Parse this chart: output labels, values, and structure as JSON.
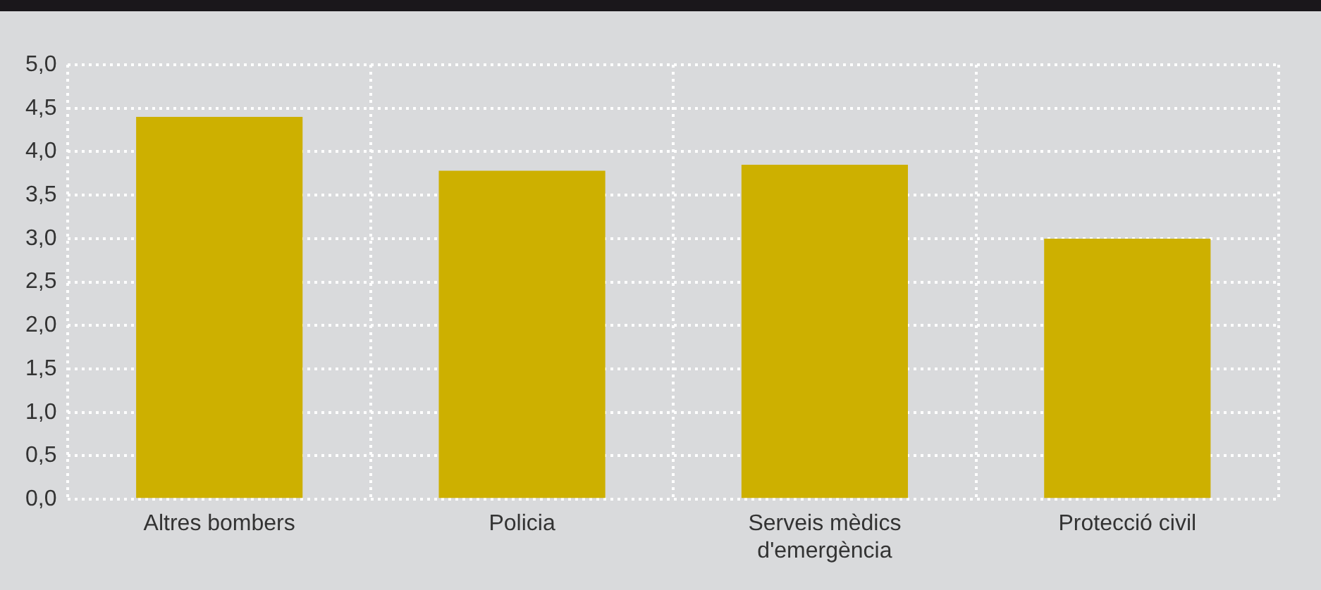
{
  "chart_data": {
    "type": "bar",
    "categories": [
      "Altres bombers",
      "Policia",
      "Serveis mèdics d'emergència",
      "Protecció civil"
    ],
    "values": [
      4.4,
      3.78,
      3.85,
      3.0
    ],
    "color": "#cdb000",
    "ylim": [
      0,
      5
    ],
    "yticks": [
      {
        "value": 0,
        "label": "0,0"
      },
      {
        "value": 0.5,
        "label": "0,5"
      },
      {
        "value": 1,
        "label": "1,0"
      },
      {
        "value": 1.5,
        "label": "1,5"
      },
      {
        "value": 2,
        "label": "2,0"
      },
      {
        "value": 2.5,
        "label": "2,5"
      },
      {
        "value": 3,
        "label": "3,0"
      },
      {
        "value": 3.5,
        "label": "3,5"
      },
      {
        "value": 4,
        "label": "4,0"
      },
      {
        "value": 4.5,
        "label": "4,5"
      },
      {
        "value": 5,
        "label": "5,0"
      }
    ],
    "grid": true,
    "legend": false
  }
}
